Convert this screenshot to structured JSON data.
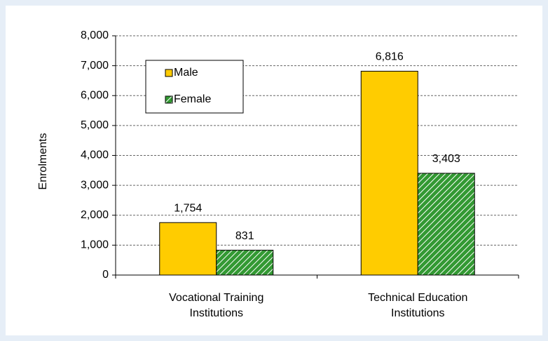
{
  "chart_data": {
    "type": "bar",
    "y_label": "Enrolments",
    "categories": [
      "Vocational Training Institutions",
      "Technical Education Institutions"
    ],
    "series": [
      {
        "name": "Male",
        "color": "#ffcc00",
        "values": [
          1754,
          6816
        ],
        "value_labels": [
          "1,754",
          "6,816"
        ]
      },
      {
        "name": "Female",
        "color": "#339933",
        "hatch": true,
        "values": [
          831,
          3403
        ],
        "value_labels": [
          "831",
          "3,403"
        ]
      }
    ],
    "ylim": [
      0,
      8000
    ],
    "yticks": [
      0,
      {
        "value": 1000,
        "label": "1,000"
      },
      {
        "value": 2000,
        "label": "2,000"
      },
      {
        "value": 3000,
        "label": "3,000"
      },
      {
        "value": 4000,
        "label": "4,000"
      },
      {
        "value": 5000,
        "label": "5,000"
      },
      {
        "value": 6000,
        "label": "6,000"
      },
      {
        "value": 7000,
        "label": "7,000"
      },
      {
        "value": 8000,
        "label": "8,000"
      }
    ],
    "grid": true,
    "legend": "upper left"
  }
}
